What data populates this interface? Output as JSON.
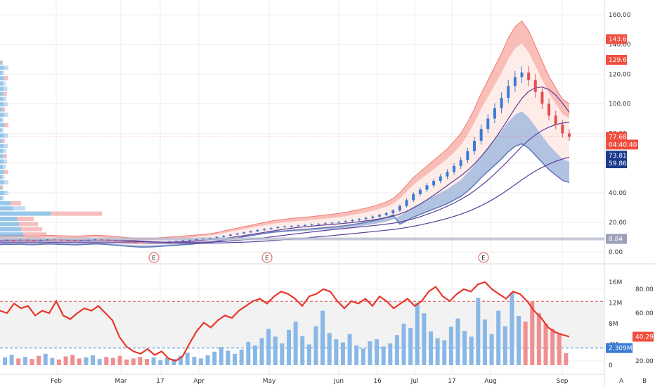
{
  "chart_data": [
    {
      "type": "candlestick",
      "panel": "price",
      "y_axis": {
        "range": [
          -8,
          170
        ],
        "ticks": [
          0,
          20,
          40,
          60,
          80,
          100,
          120,
          140,
          160
        ],
        "tick_labels": [
          "0.00",
          "20.00",
          "40.00",
          "60.00",
          "80.00",
          "100.00",
          "120.00",
          "140.00",
          "160.00"
        ]
      },
      "x_axis": {
        "labels": [
          "Feb",
          "Mar",
          "17",
          "Apr",
          "May",
          "Jun",
          "16",
          "Jul",
          "17",
          "Aug",
          "Sep"
        ]
      },
      "price_tags": [
        {
          "label": "143.60",
          "value": 143.6,
          "color": "#f04e3e"
        },
        {
          "label": "129.64",
          "value": 129.64,
          "color": "#f04e3e"
        },
        {
          "label": "77.68",
          "value": 77.68,
          "color": "#f04e3e"
        },
        {
          "label": "04:40:40",
          "value": 72.5,
          "color": "#f04e3e"
        },
        {
          "label": "73.81",
          "value": 65.0,
          "color": "#1a3b8c"
        },
        {
          "label": "59.86",
          "value": 59.86,
          "color": "#1a3b8c"
        },
        {
          "label": "8.84",
          "value": 8.84,
          "color": "#9aa0b8"
        }
      ],
      "event_markers": [
        {
          "label": "E",
          "date_label": "Mar"
        },
        {
          "label": "E",
          "date_label": "May"
        },
        {
          "label": "E",
          "date_label": "Jul-Aug"
        }
      ],
      "close_series_approx": [
        8,
        8.2,
        8.1,
        8.3,
        8.0,
        7.9,
        8.2,
        8.4,
        8.3,
        8.1,
        8.0,
        7.8,
        8.0,
        8.2,
        8.5,
        8.3,
        8.0,
        7.6,
        7.2,
        6.8,
        6.5,
        6.3,
        6.4,
        6.6,
        6.9,
        7.2,
        7.5,
        7.9,
        8.2,
        8.6,
        9.0,
        9.5,
        10.2,
        11.0,
        11.8,
        12.5,
        13.3,
        14.0,
        14.8,
        15.5,
        16.2,
        16.8,
        17.2,
        17.6,
        17.9,
        18.2,
        18.6,
        19.0,
        19.4,
        19.8,
        20.2,
        20.8,
        21.5,
        22.2,
        23.0,
        23.9,
        25.0,
        26.2,
        28.0,
        31.0,
        35.0,
        39.0,
        42.0,
        45.0,
        48.0,
        51.0,
        54.0,
        58.0,
        62.0,
        68.0,
        75.0,
        83.0,
        90.0,
        97.0,
        104.0,
        112.0,
        118.0,
        121.0,
        116.0,
        108.0,
        100.0,
        92.0,
        86.0,
        80.0,
        77.68
      ]
    },
    {
      "type": "bar",
      "panel": "volume",
      "y_axis": {
        "ticks": [
          0,
          4,
          8,
          12,
          16
        ],
        "tick_labels": [
          "0",
          "4M",
          "8M",
          "12M",
          "16M"
        ]
      },
      "last_value_tag": {
        "label": "2.309M",
        "value": 2.309,
        "color": "#3a7bd5"
      },
      "threshold_lines": [
        {
          "value": 12.3,
          "color": "#e05050"
        },
        {
          "value": 3.3,
          "color": "#3a7bd5"
        }
      ],
      "values_millions_approx": [
        1.5,
        2.0,
        1.3,
        1.6,
        1.2,
        1.8,
        2.2,
        1.4,
        1.1,
        1.7,
        2.0,
        1.3,
        1.5,
        1.9,
        1.2,
        1.6,
        1.4,
        1.8,
        1.1,
        1.3,
        1.6,
        1.2,
        1.5,
        1.0,
        1.4,
        1.2,
        1.8,
        2.4,
        1.6,
        1.3,
        1.9,
        2.6,
        3.5,
        2.8,
        2.2,
        3.0,
        4.5,
        3.8,
        5.2,
        7.0,
        5.5,
        4.2,
        6.8,
        8.4,
        5.6,
        4.0,
        7.5,
        10.5,
        6.2,
        5.0,
        4.4,
        6.0,
        3.8,
        3.2,
        4.6,
        5.0,
        3.6,
        4.2,
        5.8,
        8.0,
        7.2,
        12.0,
        10.0,
        6.5,
        5.2,
        4.8,
        7.4,
        9.0,
        6.6,
        5.5,
        13.0,
        8.8,
        6.0,
        10.5,
        7.5,
        14.0,
        9.5,
        8.4,
        12.3,
        10.0,
        8.0,
        7.0,
        6.0,
        2.309
      ]
    },
    {
      "type": "line",
      "panel": "rsi",
      "y_axis": {
        "ticks": [
          20,
          40,
          60,
          80
        ],
        "tick_labels": [
          "20.00",
          "40.00",
          "60.00",
          "80.00"
        ]
      },
      "last_value_tag": {
        "label": "40.29",
        "value": 40.29,
        "color": "#f04e3e"
      },
      "values_approx": [
        62,
        60,
        68,
        64,
        66,
        58,
        62,
        60,
        70,
        58,
        55,
        60,
        64,
        62,
        66,
        60,
        54,
        40,
        32,
        28,
        26,
        30,
        25,
        28,
        22,
        20,
        24,
        35,
        45,
        52,
        48,
        54,
        58,
        56,
        62,
        66,
        70,
        72,
        68,
        74,
        78,
        76,
        72,
        66,
        74,
        76,
        80,
        78,
        70,
        64,
        70,
        68,
        72,
        66,
        74,
        70,
        64,
        68,
        72,
        66,
        70,
        78,
        82,
        74,
        70,
        76,
        80,
        78,
        84,
        86,
        80,
        76,
        72,
        78,
        76,
        70,
        62,
        56,
        48,
        44,
        42,
        40.29
      ]
    }
  ]
}
